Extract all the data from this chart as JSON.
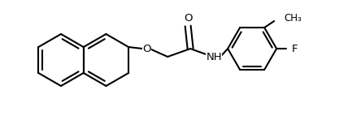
{
  "background_color": "#ffffff",
  "bond_color": "#000000",
  "bond_lw": 1.5,
  "figsize": [
    4.28,
    1.48
  ],
  "dpi": 100,
  "font_size": 9.5,
  "font_size_ch3": 8.5,
  "O_ether_label": "O",
  "O_carbonyl_label": "O",
  "NH_label": "NH",
  "F_label": "F",
  "CH3_label": "CH₃"
}
